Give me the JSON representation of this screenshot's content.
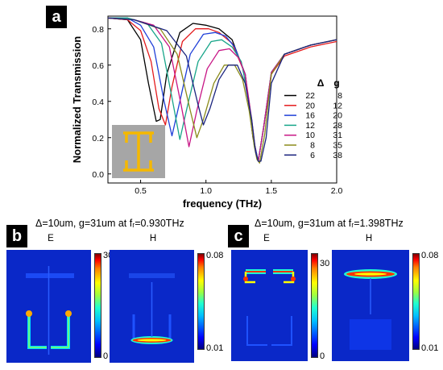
{
  "panel_a": {
    "label": "a",
    "legend_header_delta": "Δ",
    "legend_header_g": "g",
    "legend_rows": [
      {
        "delta": "22",
        "g": "8",
        "color": "#000000"
      },
      {
        "delta": "20",
        "g": "12",
        "color": "#e41a1c"
      },
      {
        "delta": "16",
        "g": "20",
        "color": "#1f3fd8"
      },
      {
        "delta": "12",
        "g": "28",
        "color": "#17a589"
      },
      {
        "delta": "10",
        "g": "31",
        "color": "#c71585"
      },
      {
        "delta": "8",
        "g": "35",
        "color": "#8b8b1a"
      },
      {
        "delta": "6",
        "g": "38",
        "color": "#1a237e"
      }
    ]
  },
  "chart_data": {
    "type": "line",
    "xlabel": "frequency (THz)",
    "ylabel": "Normalized Transmission",
    "xlim": [
      0.25,
      2.0
    ],
    "ylim": [
      -0.05,
      0.87
    ],
    "x_ticks": [
      "0.5",
      "1.0",
      "1.5",
      "2.0"
    ],
    "y_ticks": [
      "0.0",
      "0.2",
      "0.4",
      "0.6",
      "0.8"
    ],
    "series": [
      {
        "name": "22 8",
        "color": "#000000",
        "x": [
          0.25,
          0.4,
          0.5,
          0.56,
          0.62,
          0.65,
          0.7,
          0.8,
          0.9,
          1.0,
          1.1,
          1.2,
          1.3,
          1.36,
          1.4,
          1.44,
          1.5,
          1.6,
          1.8,
          2.0
        ],
        "y": [
          0.86,
          0.85,
          0.74,
          0.5,
          0.29,
          0.3,
          0.55,
          0.78,
          0.83,
          0.82,
          0.8,
          0.74,
          0.55,
          0.2,
          0.07,
          0.25,
          0.55,
          0.66,
          0.71,
          0.74
        ]
      },
      {
        "name": "20 12",
        "color": "#e41a1c",
        "x": [
          0.25,
          0.4,
          0.5,
          0.58,
          0.64,
          0.69,
          0.74,
          0.82,
          0.92,
          1.02,
          1.1,
          1.2,
          1.3,
          1.36,
          1.4,
          1.44,
          1.5,
          1.6,
          1.8,
          2.0
        ],
        "y": [
          0.86,
          0.85,
          0.79,
          0.62,
          0.36,
          0.27,
          0.48,
          0.73,
          0.8,
          0.8,
          0.78,
          0.72,
          0.55,
          0.2,
          0.07,
          0.25,
          0.55,
          0.65,
          0.7,
          0.73
        ]
      },
      {
        "name": "16 20",
        "color": "#1f3fd8",
        "x": [
          0.25,
          0.4,
          0.5,
          0.6,
          0.68,
          0.74,
          0.8,
          0.88,
          0.98,
          1.07,
          1.15,
          1.22,
          1.3,
          1.36,
          1.4,
          1.44,
          1.5,
          1.6,
          1.8,
          2.0
        ],
        "y": [
          0.86,
          0.86,
          0.82,
          0.7,
          0.4,
          0.21,
          0.4,
          0.66,
          0.77,
          0.78,
          0.76,
          0.7,
          0.55,
          0.2,
          0.07,
          0.25,
          0.56,
          0.66,
          0.71,
          0.74
        ]
      },
      {
        "name": "12 28",
        "color": "#17a589",
        "x": [
          0.25,
          0.4,
          0.55,
          0.66,
          0.74,
          0.8,
          0.86,
          0.94,
          1.04,
          1.12,
          1.2,
          1.27,
          1.33,
          1.37,
          1.4,
          1.44,
          1.5,
          1.6,
          1.8,
          2.0
        ],
        "y": [
          0.86,
          0.86,
          0.83,
          0.72,
          0.42,
          0.19,
          0.38,
          0.62,
          0.73,
          0.74,
          0.7,
          0.62,
          0.4,
          0.15,
          0.07,
          0.25,
          0.56,
          0.66,
          0.71,
          0.74
        ]
      },
      {
        "name": "10 31",
        "color": "#c71585",
        "x": [
          0.25,
          0.45,
          0.6,
          0.72,
          0.81,
          0.87,
          0.93,
          1.01,
          1.1,
          1.18,
          1.25,
          1.3,
          1.35,
          1.38,
          1.4,
          1.44,
          1.5,
          1.6,
          1.8,
          2.0
        ],
        "y": [
          0.86,
          0.85,
          0.82,
          0.7,
          0.38,
          0.15,
          0.35,
          0.58,
          0.68,
          0.69,
          0.64,
          0.55,
          0.3,
          0.12,
          0.07,
          0.25,
          0.56,
          0.66,
          0.71,
          0.74
        ]
      },
      {
        "name": "8 35",
        "color": "#8b8b1a",
        "x": [
          0.25,
          0.45,
          0.65,
          0.78,
          0.88,
          0.93,
          0.98,
          1.06,
          1.14,
          1.22,
          1.28,
          1.33,
          1.37,
          1.39,
          1.41,
          1.45,
          1.5,
          1.6,
          1.8,
          2.0
        ],
        "y": [
          0.86,
          0.85,
          0.8,
          0.66,
          0.35,
          0.2,
          0.3,
          0.5,
          0.6,
          0.6,
          0.52,
          0.35,
          0.15,
          0.08,
          0.06,
          0.22,
          0.55,
          0.66,
          0.71,
          0.74
        ]
      },
      {
        "name": "6 38",
        "color": "#1a237e",
        "x": [
          0.25,
          0.45,
          0.7,
          0.85,
          0.94,
          0.98,
          1.03,
          1.1,
          1.17,
          1.24,
          1.3,
          1.35,
          1.38,
          1.4,
          1.42,
          1.46,
          1.5,
          1.6,
          1.8,
          2.0
        ],
        "y": [
          0.86,
          0.85,
          0.79,
          0.65,
          0.38,
          0.27,
          0.36,
          0.52,
          0.6,
          0.6,
          0.5,
          0.3,
          0.12,
          0.07,
          0.07,
          0.2,
          0.5,
          0.66,
          0.71,
          0.74
        ]
      }
    ]
  },
  "panel_b": {
    "label": "b",
    "caption": "Δ=10um, g=31um at fᵣ=0.930THz",
    "e_title": "E",
    "h_title": "H",
    "e_max": "30",
    "e_min": "0",
    "h_max": "0.08",
    "h_min": "0.01"
  },
  "panel_c": {
    "label": "c",
    "caption": "Δ=10um, g=31um at fᵣ=1.398THz",
    "e_title": "E",
    "h_title": "H",
    "e_max": "30",
    "e_min": "0",
    "h_max": "0.08",
    "h_min": "0.01"
  }
}
